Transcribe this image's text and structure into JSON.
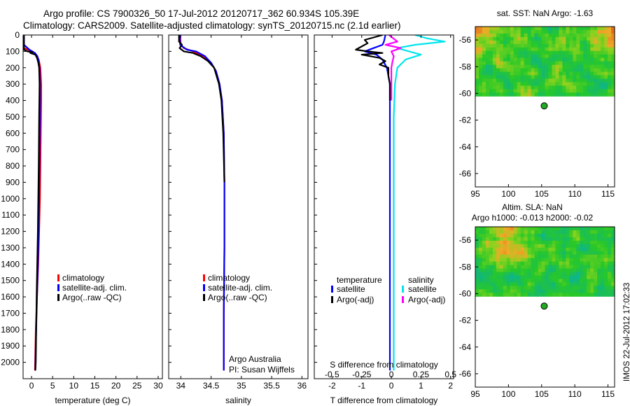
{
  "header": {
    "title_line1": "Argo profile: CS 7900326_50 17-Jul-2012 20120717_362 60.934S 105.39E",
    "title_line2": "Climatology: CARS2009. Satellite-adjusted climatology: synTS_20120715.nc (2.1d earlier)"
  },
  "footer": {
    "stamp": "IMOS 22-Jul-2012 17:02:33",
    "argo_label": "Argo Australia",
    "pi_label": "PI: Susan Wijffels"
  },
  "colors": {
    "climatology": "#ff0000",
    "satellite": "#0000ff",
    "argo": "#000000",
    "salinity_satellite": "#00e5ee",
    "salinity_argo": "#ff00ff",
    "float_marker": "#22aa22"
  },
  "chart_data": [
    {
      "id": "temperature",
      "type": "line",
      "xlabel": "temperature (deg C)",
      "ylabel": "",
      "xlim": [
        -2,
        31
      ],
      "ylim": [
        2100,
        0
      ],
      "xticks": [
        "0",
        "5",
        "10",
        "15",
        "20",
        "25",
        "30"
      ],
      "xtick_values": [
        0,
        5,
        10,
        15,
        20,
        25,
        30
      ],
      "yticks": [
        "0",
        "100",
        "200",
        "300",
        "400",
        "500",
        "600",
        "700",
        "800",
        "900",
        "1000",
        "1100",
        "1200",
        "1300",
        "1400",
        "1500",
        "1600",
        "1700",
        "1800",
        "1900",
        "2000"
      ],
      "ytick_values": [
        0,
        100,
        200,
        300,
        400,
        500,
        600,
        700,
        800,
        900,
        1000,
        1100,
        1200,
        1300,
        1400,
        1500,
        1600,
        1700,
        1800,
        1900,
        2000
      ],
      "legend": [
        "climatology",
        "satellite-adj. clim.",
        "Argo(..raw -QC)"
      ],
      "series": [
        {
          "name": "climatology",
          "depth": [
            0,
            80,
            100,
            130,
            150,
            200,
            300,
            400,
            600,
            800,
            1000,
            1200,
            1400,
            1600,
            1800,
            2050
          ],
          "values": [
            -1.8,
            -1.8,
            0.2,
            1.3,
            1.7,
            2.1,
            2.3,
            2.3,
            2.2,
            2.1,
            2.0,
            1.8,
            1.6,
            1.3,
            1.0,
            0.8
          ]
        },
        {
          "name": "satellite-adj. clim.",
          "depth": [
            0,
            60,
            90,
            110,
            130,
            160,
            200,
            300,
            500,
            700,
            1000,
            1300,
            1600,
            1900,
            2050
          ],
          "values": [
            -1.8,
            -1.8,
            -0.5,
            0.8,
            1.4,
            1.7,
            1.9,
            2.0,
            2.0,
            1.9,
            1.8,
            1.6,
            1.3,
            1.0,
            0.9
          ]
        },
        {
          "name": "Argo(..raw -QC)",
          "depth": [
            0,
            90,
            100,
            105,
            110,
            120,
            140,
            170,
            200,
            300,
            500,
            800,
            1200,
            1600,
            2000,
            2050
          ],
          "values": [
            -1.8,
            -1.8,
            -1.0,
            0.2,
            -0.3,
            0.9,
            1.3,
            1.6,
            1.8,
            1.9,
            1.8,
            1.7,
            1.5,
            1.2,
            1.0,
            0.9
          ]
        }
      ]
    },
    {
      "id": "salinity",
      "type": "line",
      "xlabel": "salinity",
      "ylabel": "",
      "xlim": [
        33.8,
        36.1
      ],
      "ylim": [
        2100,
        0
      ],
      "xticks": [
        "34",
        "34.5",
        "35",
        "35.5",
        "36"
      ],
      "xtick_values": [
        34,
        34.5,
        35,
        35.5,
        36
      ],
      "legend": [
        "climatology",
        "satellite-adj. clim.",
        "Argo(..raw -QC)"
      ],
      "series": [
        {
          "name": "climatology",
          "depth": [
            0,
            60,
            80,
            100,
            130,
            170,
            220,
            300,
            400,
            600,
            900,
            1300,
            1700,
            2050
          ],
          "values": [
            33.99,
            34.0,
            34.05,
            34.2,
            34.38,
            34.5,
            34.58,
            34.64,
            34.68,
            34.71,
            34.72,
            34.72,
            34.71,
            34.71
          ]
        },
        {
          "name": "satellite-adj. clim.",
          "depth": [
            0,
            60,
            90,
            100,
            130,
            170,
            220,
            300,
            400,
            600,
            900,
            1300,
            1700,
            2050
          ],
          "values": [
            33.98,
            33.99,
            34.1,
            34.25,
            34.4,
            34.5,
            34.58,
            34.64,
            34.68,
            34.71,
            34.72,
            34.72,
            34.71,
            34.71
          ]
        },
        {
          "name": "Argo(..raw -QC)",
          "depth": [
            0,
            40,
            60,
            80,
            100,
            110,
            130,
            160,
            200,
            300,
            400,
            600,
            900
          ],
          "values": [
            33.97,
            33.97,
            34.02,
            33.98,
            34.05,
            34.2,
            34.33,
            34.45,
            34.55,
            34.63,
            34.67,
            34.7,
            34.72
          ]
        }
      ]
    },
    {
      "id": "differences",
      "type": "line",
      "xlabel": "T difference from climatology",
      "xlabel_top": "S difference from climatology",
      "xlim": [
        -2.6,
        2.1
      ],
      "ylim": [
        2100,
        0
      ],
      "xticks": [
        "-2",
        "-1",
        "0",
        "1",
        "2"
      ],
      "xtick_values": [
        -2,
        -1,
        0,
        1,
        2
      ],
      "xticks_top": [
        "-0.5",
        "-0.25",
        "0",
        "0.25",
        "0.5"
      ],
      "xtick_top_values": [
        -0.5,
        -0.25,
        0,
        0.25,
        0.5
      ],
      "legend_temperature": {
        "heading": "temperature",
        "items": [
          "satellite",
          "Argo(-adj)"
        ]
      },
      "legend_salinity": {
        "heading": "salinity",
        "items": [
          "satellite",
          "Argo(-adj)"
        ]
      },
      "series": [
        {
          "name": "T satellite",
          "depth": [
            0,
            40,
            60,
            80,
            100,
            120,
            150,
            200,
            300,
            500,
            800,
            1200,
            1600,
            2050
          ],
          "values": [
            -0.2,
            -0.25,
            -0.3,
            -0.6,
            -0.9,
            -0.5,
            -0.3,
            -0.15,
            -0.05,
            -0.05,
            -0.05,
            -0.05,
            -0.05,
            -0.05
          ]
        },
        {
          "name": "T Argo(-adj)",
          "depth": [
            0,
            30,
            50,
            70,
            90,
            100,
            110,
            120,
            140,
            160,
            180,
            200,
            250,
            300,
            400
          ],
          "values": [
            -0.3,
            -0.9,
            -0.8,
            -1.0,
            -1.2,
            -0.8,
            -0.3,
            -1.0,
            -0.4,
            -0.2,
            -0.4,
            -0.1,
            -0.1,
            -0.05,
            -0.05
          ]
        },
        {
          "name": "S satellite",
          "depth": [
            0,
            20,
            40,
            60,
            80,
            100,
            120,
            150,
            200,
            300,
            500,
            800,
            1200,
            1600,
            2050
          ],
          "values": [
            0.2,
            0.3,
            0.45,
            0.2,
            0.05,
            0.15,
            0.25,
            0.12,
            0.05,
            0.03,
            0.02,
            0.02,
            0.02,
            0.02,
            0.02
          ]
        },
        {
          "name": "S Argo(-adj)",
          "depth": [
            0,
            40,
            60,
            80,
            100,
            130,
            160,
            200,
            250,
            300,
            400
          ],
          "values": [
            -0.02,
            0.05,
            -0.05,
            0.08,
            0.0,
            0.02,
            0.01,
            0.0,
            0.0,
            0.0,
            0.0
          ]
        }
      ]
    },
    {
      "id": "sst_map",
      "type": "heatmap",
      "title": "sat. SST: NaN Argo: -1.63",
      "xlim": [
        95,
        116
      ],
      "ylim": [
        -67,
        -55
      ],
      "xticks": [
        "95",
        "100",
        "105",
        "110",
        "115"
      ],
      "xtick_values": [
        95,
        100,
        105,
        110,
        115
      ],
      "yticks": [
        "-56",
        "-58",
        "-60",
        "-62",
        "-64",
        "-66"
      ],
      "ytick_values": [
        -56,
        -58,
        -60,
        -62,
        -64,
        -66
      ],
      "data_lat_range": [
        -55,
        -60.2
      ],
      "marker": {
        "lon": 105.39,
        "lat": -60.934
      }
    },
    {
      "id": "sla_map",
      "type": "heatmap",
      "title": "Altim. SLA: NaN",
      "subtitle": "Argo h1000: -0.013 h2000: -0.02",
      "xlim": [
        95,
        116
      ],
      "ylim": [
        -67,
        -55
      ],
      "xticks": [
        "95",
        "100",
        "105",
        "110",
        "115"
      ],
      "xtick_values": [
        95,
        100,
        105,
        110,
        115
      ],
      "yticks": [
        "-56",
        "-58",
        "-60",
        "-62",
        "-64",
        "-66"
      ],
      "ytick_values": [
        -56,
        -58,
        -60,
        -62,
        -64,
        -66
      ],
      "data_lat_range": [
        -55,
        -60.2
      ],
      "marker": {
        "lon": 105.39,
        "lat": -60.934
      }
    }
  ]
}
